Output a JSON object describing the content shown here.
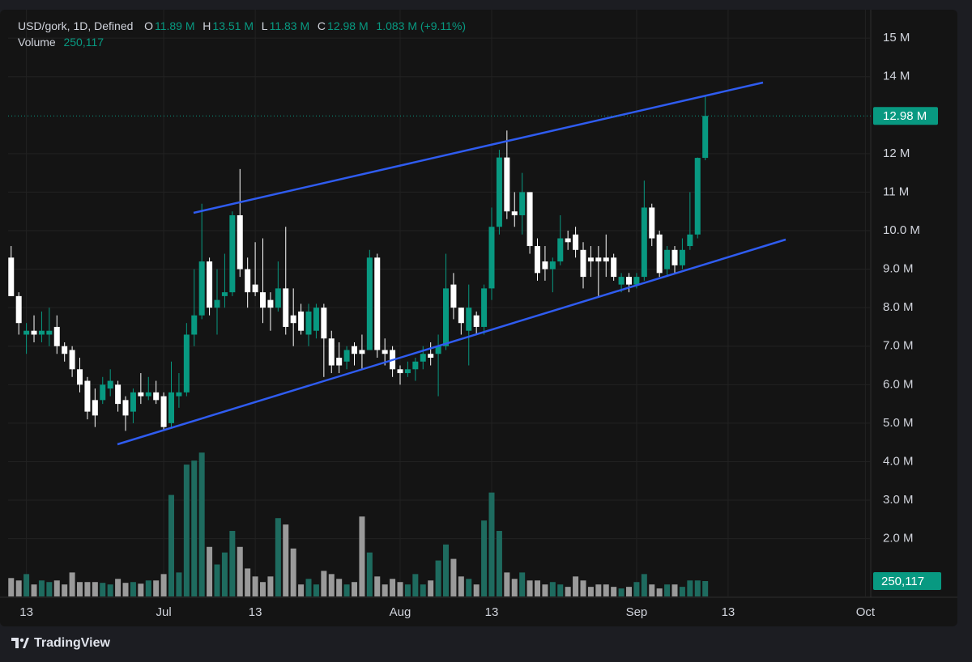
{
  "brand": "TradingView",
  "chart_data": {
    "type": "candlestick",
    "header": {
      "symbol": "USD/gork, 1D, Defined",
      "open_label": "O",
      "open": "11.89 M",
      "high_label": "H",
      "high": "13.51 M",
      "low_label": "L",
      "low": "11.83 M",
      "close_label": "C",
      "close": "12.98 M",
      "change": "1.083 M (+9.11%)",
      "volume_label": "Volume",
      "volume": "250,117"
    },
    "up_color": "#089981",
    "down_color": "#ffffff",
    "volume_up_color": "#1e6b5f",
    "volume_down_color": "#9a9a9a",
    "open": [
      9.3,
      8.3,
      7.3,
      7.4,
      7.3,
      7.3,
      7.5,
      7.0,
      6.9,
      6.4,
      6.1,
      5.6,
      5.6,
      5.9,
      6.0,
      5.6,
      5.3,
      5.8,
      5.7,
      5.8,
      5.7,
      5.0,
      5.7,
      5.8,
      7.3,
      7.8,
      9.2,
      8.0,
      8.3,
      8.4,
      10.4,
      9.0,
      8.6,
      8.4,
      8.2,
      8.0,
      8.5,
      7.8,
      7.9,
      7.3,
      7.4,
      8.0,
      7.2,
      6.7,
      6.6,
      7.0,
      6.9,
      6.9,
      9.3,
      6.9,
      6.9,
      6.4,
      6.3,
      6.4,
      6.6,
      6.8,
      6.8,
      7.0,
      8.6,
      8.0,
      7.4,
      7.8,
      7.5,
      8.5,
      10.1,
      11.9,
      10.5,
      10.4,
      11.0,
      9.6,
      9.2,
      9.0,
      9.2,
      9.8,
      9.9,
      9.5,
      9.3,
      9.3,
      9.3,
      9.3,
      8.6,
      8.8,
      8.6,
      8.8,
      10.6,
      9.9,
      9.0,
      9.5,
      9.1,
      9.6,
      9.9,
      11.89
    ],
    "high": [
      9.6,
      8.4,
      7.6,
      7.8,
      7.9,
      8.0,
      7.8,
      7.1,
      7.0,
      6.7,
      6.2,
      5.9,
      6.2,
      6.4,
      6.1,
      5.7,
      5.9,
      6.3,
      6.2,
      6.1,
      5.8,
      6.6,
      6.3,
      7.6,
      9.0,
      10.7,
      9.3,
      9.0,
      9.4,
      10.5,
      11.6,
      9.3,
      9.7,
      9.8,
      8.4,
      9.2,
      10.1,
      8.5,
      8.1,
      8.1,
      8.1,
      8.1,
      7.4,
      7.1,
      7.0,
      7.1,
      7.3,
      9.5,
      9.4,
      7.2,
      7.0,
      6.5,
      6.6,
      6.7,
      7.0,
      7.1,
      7.3,
      9.4,
      8.9,
      8.0,
      8.6,
      7.9,
      8.6,
      10.6,
      12.1,
      12.6,
      11.0,
      11.5,
      11.0,
      9.8,
      9.6,
      9.3,
      10.4,
      10.0,
      10.1,
      9.7,
      9.6,
      9.6,
      9.9,
      9.4,
      8.9,
      8.9,
      8.9,
      11.3,
      10.7,
      10.0,
      9.6,
      9.6,
      9.8,
      11.0,
      11.9,
      13.51
    ],
    "low": [
      8.3,
      7.3,
      6.8,
      7.1,
      7.1,
      7.0,
      6.8,
      6.6,
      6.2,
      5.8,
      5.1,
      4.9,
      5.5,
      5.7,
      5.3,
      4.8,
      5.0,
      5.5,
      5.6,
      5.5,
      4.8,
      4.9,
      5.4,
      5.7,
      7.0,
      7.7,
      7.8,
      7.3,
      8.0,
      8.3,
      8.8,
      8.0,
      8.3,
      7.6,
      7.4,
      7.9,
      7.3,
      7.0,
      7.3,
      7.0,
      7.2,
      6.2,
      6.3,
      6.3,
      6.4,
      6.5,
      6.4,
      6.9,
      6.7,
      6.5,
      6.2,
      6.0,
      6.2,
      6.1,
      6.4,
      6.5,
      5.7,
      6.9,
      7.7,
      7.3,
      6.5,
      7.3,
      7.3,
      8.2,
      9.9,
      10.3,
      10.1,
      9.9,
      9.4,
      8.7,
      8.7,
      8.4,
      9.1,
      9.5,
      9.3,
      8.5,
      8.8,
      8.3,
      8.8,
      8.7,
      8.4,
      8.4,
      8.5,
      8.7,
      9.6,
      8.8,
      8.8,
      8.9,
      9.0,
      9.5,
      9.8,
      11.83
    ],
    "close": [
      8.3,
      7.6,
      7.4,
      7.3,
      7.4,
      7.4,
      7.0,
      6.8,
      6.4,
      6.0,
      5.3,
      5.2,
      6.0,
      6.1,
      5.5,
      5.2,
      5.8,
      5.7,
      5.8,
      5.6,
      4.9,
      5.8,
      5.8,
      7.3,
      7.8,
      9.2,
      8.0,
      8.2,
      8.4,
      10.4,
      9.0,
      8.4,
      8.4,
      8.0,
      8.0,
      8.5,
      7.5,
      7.6,
      7.4,
      7.9,
      8.0,
      7.2,
      6.5,
      6.5,
      6.9,
      6.8,
      6.8,
      9.3,
      6.9,
      6.8,
      6.4,
      6.3,
      6.4,
      6.6,
      6.8,
      6.7,
      7.0,
      8.5,
      8.0,
      7.6,
      8.0,
      7.5,
      8.5,
      10.1,
      11.9,
      10.5,
      10.4,
      11.0,
      9.6,
      8.9,
      9.0,
      9.2,
      9.8,
      9.7,
      9.5,
      8.8,
      9.2,
      9.2,
      9.2,
      8.8,
      8.8,
      8.6,
      8.8,
      10.6,
      9.8,
      8.9,
      9.5,
      9.1,
      9.5,
      9.9,
      11.89,
      12.98
    ],
    "volume": [
      299000,
      260000,
      364000,
      195000,
      260000,
      234000,
      260000,
      195000,
      390000,
      234000,
      234000,
      234000,
      221000,
      195000,
      286000,
      221000,
      234000,
      208000,
      260000,
      260000,
      364000,
      1651000,
      390000,
      2145000,
      2210000,
      2340000,
      806000,
      520000,
      715000,
      1066000,
      806000,
      455000,
      325000,
      234000,
      325000,
      1274000,
      1170000,
      780000,
      195000,
      286000,
      195000,
      416000,
      364000,
      286000,
      195000,
      234000,
      1300000,
      715000,
      325000,
      195000,
      286000,
      234000,
      195000,
      364000,
      195000,
      260000,
      585000,
      845000,
      611000,
      325000,
      286000,
      195000,
      1235000,
      1690000,
      1066000,
      390000,
      286000,
      390000,
      260000,
      260000,
      195000,
      234000,
      195000,
      156000,
      325000,
      260000,
      156000,
      195000,
      195000,
      156000,
      130000,
      156000,
      234000,
      364000,
      195000,
      130000,
      195000,
      195000,
      156000,
      260000,
      260000,
      250117
    ],
    "volume_lim": [
      0,
      9570000
    ],
    "volume_tag": {
      "value": 250117,
      "label": "250,117"
    },
    "price_tag": {
      "value": 12.98,
      "label": "12.98 M"
    },
    "xlim": [
      -0.4,
      112.7
    ],
    "xticks": [
      {
        "value": 2,
        "label": "13"
      },
      {
        "value": 20,
        "label": "Jul"
      },
      {
        "value": 32,
        "label": "13"
      },
      {
        "value": 51,
        "label": "Aug"
      },
      {
        "value": 63,
        "label": "13"
      },
      {
        "value": 82,
        "label": "Sep"
      },
      {
        "value": 94,
        "label": "13"
      },
      {
        "value": 112,
        "label": "Oct"
      }
    ],
    "ylim": [
      0.5,
      15.78
    ],
    "yticks": [
      {
        "value": 15,
        "label": "15 M"
      },
      {
        "value": 14,
        "label": "14 M"
      },
      {
        "value": 12,
        "label": "12 M"
      },
      {
        "value": 11,
        "label": "11 M"
      },
      {
        "value": 10,
        "label": "10.0 M"
      },
      {
        "value": 9,
        "label": "9.0 M"
      },
      {
        "value": 8,
        "label": "8.0 M"
      },
      {
        "value": 7,
        "label": "7.0 M"
      },
      {
        "value": 6,
        "label": "6.0 M"
      },
      {
        "value": 5,
        "label": "5.0 M"
      },
      {
        "value": 4,
        "label": "4.0 M"
      },
      {
        "value": 3,
        "label": "3.0 M"
      },
      {
        "value": 2,
        "label": "2.0 M"
      }
    ],
    "grid": true
  }
}
